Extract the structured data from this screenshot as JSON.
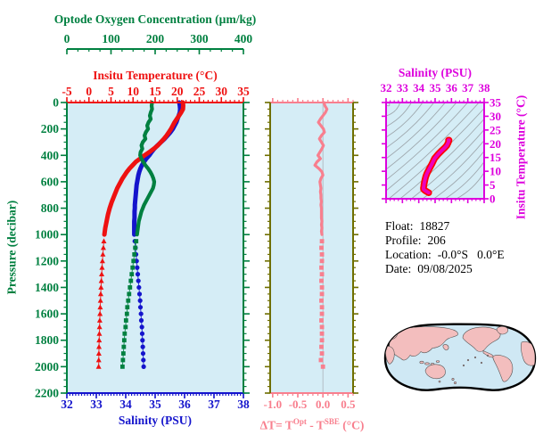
{
  "colors": {
    "green": "#008040",
    "red": "#ee1111",
    "blue": "#1414cc",
    "salmon": "#f87f8e",
    "olive": "#6f6f00",
    "magenta": "#dd00dd",
    "ts_line": "#ee00bb",
    "ts_edge": "#ff0000",
    "plot_bg": "#d5edf6",
    "contour": "#9fa8ae",
    "zero_line": "#b4bcc4",
    "map_land": "#f3bebe",
    "map_ocean": "#cfe8f4",
    "map_outline": "#000000"
  },
  "profile_panel": {
    "oxygen_axis": {
      "title": "Optode Oxygen Concentration (µm/kg)",
      "tick_labels": [
        "0",
        "100",
        "200",
        "300",
        "400"
      ],
      "range": [
        0,
        400
      ],
      "minor_step": 25
    },
    "temperature_axis": {
      "title": "Insitu Temperature (°C)",
      "tick_labels": [
        "-5",
        "0",
        "5",
        "10",
        "15",
        "20",
        "25",
        "30",
        "35"
      ],
      "range": [
        -5,
        35
      ],
      "minor_step": 1
    },
    "salinity_axis": {
      "title": "Salinity (PSU)",
      "tick_labels": [
        "32",
        "33",
        "34",
        "35",
        "36",
        "37",
        "38"
      ],
      "range": [
        32,
        38
      ],
      "minor_step": 0.1
    },
    "pressure_axis": {
      "title": "Pressure (decibar)",
      "tick_labels": [
        "0",
        "200",
        "400",
        "600",
        "800",
        "1000",
        "1200",
        "1400",
        "1600",
        "1800",
        "2000",
        "2200"
      ],
      "range": [
        0,
        2200
      ],
      "minor_step": 50
    }
  },
  "delta_panel": {
    "x_axis": {
      "label_parts": {
        "pre": "ΔT= T",
        "sup1": "Opt",
        "mid": " - T",
        "sup2": "SBE",
        "post": " (°C)"
      },
      "tick_labels": [
        "-1.0",
        "-0.5",
        "0.0",
        "0.5"
      ],
      "tick_values": [
        -1.0,
        -0.5,
        0.0,
        0.5
      ],
      "range": [
        -1.05,
        0.6
      ],
      "minor_step": 0.1
    },
    "zero_line_at": 0.0
  },
  "ts_panel": {
    "salinity_axis": {
      "title": "Salinity (PSU)",
      "tick_labels": [
        "32",
        "33",
        "34",
        "35",
        "36",
        "37",
        "38"
      ],
      "range": [
        32,
        38
      ],
      "minor_step": 0.25
    },
    "temperature_axis": {
      "title": "Insitu Temperature (°C)",
      "tick_labels": [
        "0",
        "5",
        "10",
        "15",
        "20",
        "25",
        "30",
        "35"
      ],
      "range": [
        0,
        35
      ],
      "minor_step": 1
    }
  },
  "info": {
    "rows": [
      {
        "label": "Float:",
        "value": "18827"
      },
      {
        "label": "Profile:",
        "value": "206"
      },
      {
        "label": "Location:",
        "value": "-0.0°S   0.0°E"
      },
      {
        "label": "Date:",
        "value": "09/08/2025"
      }
    ]
  },
  "chart_data": [
    {
      "id": "profile",
      "type": "line",
      "title": "",
      "ylabel": "Pressure (decibar)",
      "ylim": [
        0,
        2200
      ],
      "y_inverted": true,
      "pressure_solid": [
        0,
        25,
        50,
        75,
        100,
        125,
        150,
        175,
        200,
        225,
        250,
        275,
        300,
        325,
        350,
        375,
        400,
        425,
        450,
        475,
        500,
        525,
        550,
        575,
        600,
        625,
        650,
        675,
        700,
        725,
        750,
        775,
        800,
        825,
        850,
        875,
        900,
        925,
        950,
        975,
        1000
      ],
      "pressure_deep": [
        1050,
        1100,
        1150,
        1200,
        1250,
        1300,
        1350,
        1400,
        1450,
        1500,
        1550,
        1600,
        1650,
        1700,
        1750,
        1800,
        1850,
        1900,
        1950,
        2000
      ],
      "series": [
        {
          "name": "Insitu Temperature (°C)",
          "axis": "top-inner",
          "xlim": [
            -5,
            35
          ],
          "color_key": "red",
          "marker_deep": "triangle",
          "values_solid": [
            21.3,
            21.35,
            21.3,
            20.9,
            20.4,
            19.9,
            19.4,
            19.0,
            18.6,
            18.1,
            17.6,
            17.0,
            16.3,
            15.6,
            14.7,
            13.7,
            12.6,
            11.6,
            10.6,
            9.9,
            9.2,
            8.6,
            8.1,
            7.6,
            7.2,
            6.8,
            6.4,
            6.1,
            5.8,
            5.5,
            5.2,
            4.95,
            4.7,
            4.5,
            4.3,
            4.15,
            4.0,
            3.85,
            3.7,
            3.6,
            3.5
          ],
          "values_deep": [
            3.38,
            3.27,
            3.16,
            3.06,
            2.97,
            2.89,
            2.81,
            2.74,
            2.67,
            2.61,
            2.55,
            2.5,
            2.45,
            2.4,
            2.36,
            2.32,
            2.28,
            2.25,
            2.22,
            2.2
          ]
        },
        {
          "name": "Salinity (PSU)",
          "axis": "bottom",
          "xlim": [
            32,
            38
          ],
          "color_key": "blue",
          "marker_deep": "circle",
          "values_solid": [
            35.82,
            35.84,
            35.85,
            35.84,
            35.8,
            35.76,
            35.72,
            35.66,
            35.6,
            35.52,
            35.42,
            35.32,
            35.2,
            35.08,
            34.97,
            34.88,
            34.8,
            34.7,
            34.62,
            34.55,
            34.5,
            34.46,
            34.43,
            34.41,
            34.39,
            34.37,
            34.36,
            34.35,
            34.34,
            34.33,
            34.32,
            34.31,
            34.31,
            34.3,
            34.3,
            34.3,
            34.29,
            34.29,
            34.29,
            34.29,
            34.29
          ],
          "values_deep": [
            34.31,
            34.33,
            34.35,
            34.37,
            34.39,
            34.41,
            34.43,
            34.45,
            34.47,
            34.49,
            34.5,
            34.52,
            34.53,
            34.55,
            34.56,
            34.57,
            34.58,
            34.59,
            34.6,
            34.61
          ]
        },
        {
          "name": "Optode Oxygen Concentration (µm/kg)",
          "axis": "top-outer",
          "xlim": [
            0,
            400
          ],
          "color_key": "green",
          "marker_deep": "square",
          "values_solid": [
            193,
            192,
            193,
            190,
            188,
            190,
            185,
            182,
            184,
            179,
            176,
            178,
            172,
            169,
            171,
            167,
            166,
            169,
            173,
            178,
            184,
            189,
            193,
            196,
            198,
            197,
            195,
            191,
            187,
            183,
            179,
            175,
            172,
            169,
            167,
            165,
            163,
            162,
            161,
            160,
            159
          ],
          "values_deep": [
            157,
            155,
            153,
            151,
            149,
            147,
            145,
            143,
            141,
            139,
            137,
            136,
            134,
            133,
            131,
            130,
            129,
            128,
            127,
            126
          ]
        }
      ]
    },
    {
      "id": "delta_t",
      "type": "line",
      "xlabel": "ΔT = T^Opt - T^SBE (°C)",
      "xlim": [
        -1.05,
        0.6
      ],
      "ylim": [
        0,
        2200
      ],
      "y_inverted": true,
      "color_key": "salmon",
      "pressure_solid": [
        0,
        25,
        50,
        75,
        100,
        125,
        150,
        175,
        200,
        225,
        250,
        275,
        300,
        325,
        350,
        375,
        400,
        425,
        450,
        475,
        500,
        525,
        550,
        575,
        600,
        625,
        650,
        675,
        700,
        725,
        750,
        775,
        800,
        825,
        850,
        875,
        900,
        925,
        950,
        975,
        1000
      ],
      "values_solid": [
        0.02,
        0.04,
        0.08,
        0.05,
        0.0,
        -0.05,
        -0.09,
        -0.04,
        0.01,
        0.03,
        -0.03,
        -0.07,
        -0.03,
        0.01,
        -0.02,
        -0.06,
        -0.1,
        -0.05,
        -0.12,
        -0.16,
        -0.08,
        -0.02,
        0.0,
        -0.04,
        -0.06,
        -0.05,
        -0.04,
        -0.05,
        -0.04,
        -0.04,
        -0.03,
        -0.04,
        -0.03,
        -0.03,
        -0.03,
        -0.03,
        -0.02,
        -0.03,
        -0.02,
        -0.03,
        -0.02
      ],
      "pressure_deep": [
        1050,
        1100,
        1150,
        1200,
        1250,
        1300,
        1350,
        1400,
        1450,
        1500,
        1550,
        1600,
        1650,
        1700,
        1750,
        1800,
        1850,
        1900,
        1950,
        2000
      ],
      "values_deep": [
        -0.02,
        -0.03,
        -0.02,
        -0.02,
        -0.03,
        -0.02,
        -0.03,
        -0.02,
        -0.02,
        -0.03,
        -0.02,
        -0.02,
        -0.03,
        -0.02,
        -0.02,
        -0.02,
        -0.03,
        -0.02,
        -0.04,
        0.0
      ]
    },
    {
      "id": "ts_diagram",
      "type": "line",
      "xlabel": "Salinity (PSU)",
      "ylabel": "Insitu Temperature (°C)",
      "xlim": [
        32,
        38
      ],
      "ylim": [
        0,
        35
      ],
      "background": "isopycnal-contours",
      "salinity": [
        35.82,
        35.85,
        35.8,
        35.72,
        35.6,
        35.42,
        35.2,
        34.97,
        34.8,
        34.62,
        34.5,
        34.43,
        34.39,
        34.36,
        34.34,
        34.32,
        34.31,
        34.3,
        34.29,
        34.29,
        34.29,
        34.31,
        34.33,
        34.37,
        34.41,
        34.45,
        34.49,
        34.52,
        34.55,
        34.57,
        34.59,
        34.61
      ],
      "temperature": [
        21.3,
        21.3,
        20.4,
        19.4,
        18.6,
        17.6,
        16.3,
        14.7,
        12.6,
        10.6,
        9.2,
        8.1,
        7.2,
        6.4,
        5.8,
        5.2,
        4.7,
        4.3,
        4.0,
        3.7,
        3.5,
        3.38,
        3.27,
        3.06,
        2.89,
        2.74,
        2.61,
        2.5,
        2.4,
        2.32,
        2.25,
        2.2
      ]
    }
  ]
}
